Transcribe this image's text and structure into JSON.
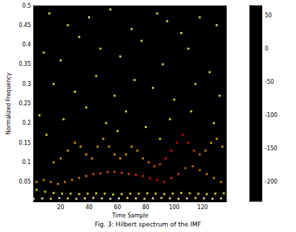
{
  "chart_data": {
    "type": "scatter",
    "title": "Fig. 3: Hilbert spectrum of the IMF",
    "x_label": "Time Sample",
    "y_label": "Normalized Frequency",
    "xlim": [
      1,
      137
    ],
    "ylim": [
      0,
      0.5
    ],
    "xticks": [
      20,
      40,
      60,
      80,
      100,
      120
    ],
    "yticks": [
      0.05,
      0.1,
      0.15,
      0.2,
      0.25,
      0.3,
      0.35,
      0.4,
      0.45,
      0.5
    ],
    "colorbar": {
      "range": [
        -230,
        65
      ],
      "ticks": [
        -200,
        -150,
        -100,
        -50,
        0,
        50
      ]
    },
    "points": [
      [
        1,
        0.007,
        55
      ],
      [
        7,
        0.008,
        50
      ],
      [
        13,
        0.007,
        45
      ],
      [
        19,
        0.009,
        50
      ],
      [
        25,
        0.008,
        40
      ],
      [
        31,
        0.007,
        45
      ],
      [
        37,
        0.008,
        50
      ],
      [
        43,
        0.009,
        45
      ],
      [
        49,
        0.008,
        40
      ],
      [
        55,
        0.007,
        45
      ],
      [
        61,
        0.008,
        50
      ],
      [
        67,
        0.009,
        40
      ],
      [
        73,
        0.008,
        45
      ],
      [
        79,
        0.007,
        50
      ],
      [
        85,
        0.008,
        45
      ],
      [
        91,
        0.009,
        40
      ],
      [
        97,
        0.008,
        45
      ],
      [
        103,
        0.007,
        50
      ],
      [
        109,
        0.008,
        45
      ],
      [
        115,
        0.009,
        40
      ],
      [
        121,
        0.008,
        45
      ],
      [
        127,
        0.007,
        50
      ],
      [
        133,
        0.008,
        45
      ],
      [
        3,
        0.03,
        10
      ],
      [
        9,
        0.025,
        5
      ],
      [
        15,
        0.022,
        10
      ],
      [
        21,
        0.02,
        15
      ],
      [
        27,
        0.02,
        10
      ],
      [
        33,
        0.019,
        5
      ],
      [
        39,
        0.02,
        0
      ],
      [
        45,
        0.021,
        5
      ],
      [
        51,
        0.02,
        10
      ],
      [
        57,
        0.018,
        15
      ],
      [
        63,
        0.019,
        10
      ],
      [
        69,
        0.02,
        5
      ],
      [
        75,
        0.02,
        0
      ],
      [
        81,
        0.021,
        5
      ],
      [
        87,
        0.02,
        10
      ],
      [
        93,
        0.019,
        5
      ],
      [
        99,
        0.02,
        0
      ],
      [
        105,
        0.022,
        5
      ],
      [
        111,
        0.021,
        10
      ],
      [
        117,
        0.02,
        5
      ],
      [
        123,
        0.019,
        10
      ],
      [
        129,
        0.02,
        5
      ],
      [
        135,
        0.021,
        10
      ],
      [
        3,
        0.05,
        -40
      ],
      [
        8,
        0.055,
        -45
      ],
      [
        13,
        0.05,
        -50
      ],
      [
        18,
        0.045,
        -50
      ],
      [
        23,
        0.05,
        -55
      ],
      [
        28,
        0.055,
        -55
      ],
      [
        33,
        0.06,
        -60
      ],
      [
        38,
        0.065,
        -60
      ],
      [
        43,
        0.07,
        -65
      ],
      [
        48,
        0.072,
        -70
      ],
      [
        53,
        0.075,
        -70
      ],
      [
        58,
        0.076,
        -75
      ],
      [
        63,
        0.073,
        -80
      ],
      [
        68,
        0.07,
        -85
      ],
      [
        73,
        0.068,
        -90
      ],
      [
        78,
        0.065,
        -95
      ],
      [
        83,
        0.06,
        -100
      ],
      [
        88,
        0.055,
        -110
      ],
      [
        93,
        0.05,
        -100
      ],
      [
        98,
        0.06,
        -90
      ],
      [
        103,
        0.07,
        -80
      ],
      [
        108,
        0.085,
        -70
      ],
      [
        113,
        0.09,
        -60
      ],
      [
        118,
        0.08,
        -60
      ],
      [
        123,
        0.07,
        -55
      ],
      [
        128,
        0.06,
        -50
      ],
      [
        133,
        0.05,
        -45
      ],
      [
        15,
        0.1,
        -40
      ],
      [
        20,
        0.11,
        -35
      ],
      [
        25,
        0.13,
        -30
      ],
      [
        30,
        0.15,
        -25
      ],
      [
        34,
        0.14,
        -30
      ],
      [
        38,
        0.12,
        -35
      ],
      [
        42,
        0.11,
        -35
      ],
      [
        46,
        0.14,
        -30
      ],
      [
        50,
        0.16,
        -30
      ],
      [
        54,
        0.14,
        -35
      ],
      [
        58,
        0.12,
        -40
      ],
      [
        62,
        0.11,
        -40
      ],
      [
        66,
        0.12,
        -35
      ],
      [
        70,
        0.14,
        -30
      ],
      [
        74,
        0.13,
        -40
      ],
      [
        78,
        0.11,
        -50
      ],
      [
        82,
        0.1,
        -60
      ],
      [
        86,
        0.09,
        -70
      ],
      [
        90,
        0.095,
        -80
      ],
      [
        94,
        0.11,
        -100
      ],
      [
        98,
        0.13,
        -110
      ],
      [
        102,
        0.15,
        -120
      ],
      [
        106,
        0.17,
        -110
      ],
      [
        110,
        0.15,
        -100
      ],
      [
        114,
        0.13,
        -80
      ],
      [
        118,
        0.12,
        -60
      ],
      [
        122,
        0.13,
        -40
      ],
      [
        126,
        0.15,
        -30
      ],
      [
        130,
        0.16,
        -30
      ],
      [
        134,
        0.14,
        -35
      ],
      [
        12,
        0.48,
        30
      ],
      [
        25,
        0.45,
        20
      ],
      [
        40,
        0.47,
        35
      ],
      [
        55,
        0.49,
        25
      ],
      [
        70,
        0.44,
        30
      ],
      [
        88,
        0.48,
        20
      ],
      [
        95,
        0.46,
        25
      ],
      [
        105,
        0.43,
        30
      ],
      [
        118,
        0.47,
        20
      ],
      [
        130,
        0.45,
        35
      ],
      [
        8,
        0.38,
        20
      ],
      [
        20,
        0.36,
        25
      ],
      [
        33,
        0.42,
        30
      ],
      [
        48,
        0.39,
        15
      ],
      [
        62,
        0.37,
        25
      ],
      [
        77,
        0.41,
        20
      ],
      [
        92,
        0.35,
        30
      ],
      [
        110,
        0.39,
        25
      ],
      [
        125,
        0.33,
        15
      ],
      [
        15,
        0.3,
        20
      ],
      [
        30,
        0.28,
        25
      ],
      [
        45,
        0.32,
        15
      ],
      [
        58,
        0.27,
        20
      ],
      [
        72,
        0.31,
        25
      ],
      [
        85,
        0.29,
        20
      ],
      [
        100,
        0.26,
        15
      ],
      [
        115,
        0.3,
        20
      ],
      [
        132,
        0.27,
        25
      ],
      [
        5,
        0.22,
        15
      ],
      [
        22,
        0.21,
        20
      ],
      [
        38,
        0.24,
        10
      ],
      [
        52,
        0.2,
        15
      ],
      [
        66,
        0.23,
        20
      ],
      [
        80,
        0.19,
        10
      ],
      [
        97,
        0.21,
        15
      ],
      [
        112,
        0.23,
        10
      ],
      [
        128,
        0.2,
        15
      ],
      [
        10,
        0.17,
        5
      ],
      [
        60,
        0.18,
        10
      ],
      [
        90,
        0.16,
        5
      ]
    ]
  }
}
